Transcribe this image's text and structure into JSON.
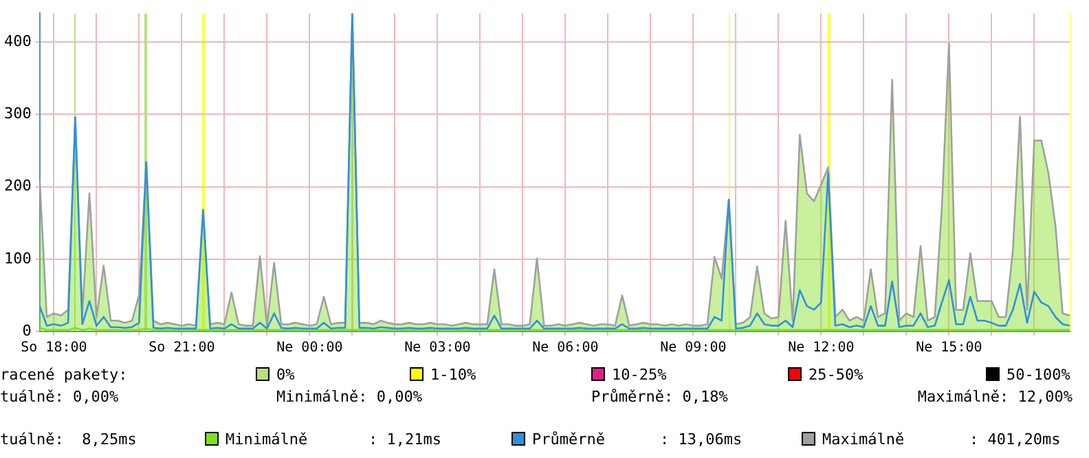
{
  "chart_data": {
    "type": "line",
    "categories": [
      null,
      null,
      "So 18:00",
      null,
      null,
      null,
      null,
      null,
      null,
      null,
      null,
      null,
      null,
      null,
      null,
      null,
      null,
      null,
      null,
      null,
      "So 21:00",
      null,
      null,
      null,
      null,
      null,
      null,
      null,
      null,
      null,
      null,
      null,
      null,
      null,
      null,
      null,
      null,
      null,
      "Ne 00:00",
      null,
      null,
      null,
      null,
      null,
      null,
      null,
      null,
      null,
      null,
      null,
      null,
      null,
      null,
      null,
      null,
      null,
      "Ne 03:00",
      null,
      null,
      null,
      null,
      null,
      null,
      null,
      null,
      null,
      null,
      null,
      null,
      null,
      null,
      null,
      null,
      null,
      "Ne 06:00",
      null,
      null,
      null,
      null,
      null,
      null,
      null,
      null,
      null,
      null,
      null,
      null,
      null,
      null,
      null,
      null,
      null,
      "Ne 09:00",
      null,
      null,
      null,
      null,
      null,
      null,
      null,
      null,
      null,
      null,
      null,
      null,
      null,
      null,
      null,
      null,
      null,
      "Ne 12:00",
      null,
      null,
      null,
      null,
      null,
      null,
      null,
      null,
      null,
      null,
      null,
      null,
      null,
      null,
      null,
      null,
      null,
      "Ne 15:00",
      null,
      null,
      null,
      null,
      null,
      null,
      null,
      null,
      null,
      null,
      null,
      null,
      null,
      null,
      null,
      null,
      null
    ],
    "series": [
      {
        "name": "Minimálně",
        "color": "#80e020",
        "values": [
          5,
          2,
          2,
          2,
          2,
          5,
          2,
          4,
          2,
          2,
          2,
          2,
          2,
          2,
          2,
          4,
          2,
          2,
          2,
          2,
          2,
          2,
          2,
          2,
          2,
          2,
          2,
          2,
          2,
          2,
          2,
          2,
          2,
          2,
          2,
          2,
          2,
          2,
          2,
          2,
          2,
          2,
          2,
          2,
          2,
          2,
          2,
          2,
          2,
          2,
          2,
          2,
          2,
          2,
          2,
          2,
          2,
          2,
          2,
          2,
          2,
          2,
          2,
          2,
          2,
          2,
          2,
          2,
          2,
          2,
          2,
          2,
          2,
          2,
          2,
          2,
          2,
          2,
          2,
          2,
          2,
          2,
          2,
          2,
          2,
          2,
          2,
          2,
          2,
          2,
          2,
          2,
          2,
          2,
          2,
          2,
          2,
          2,
          2,
          2,
          2,
          2,
          2,
          2,
          2,
          2,
          2,
          2,
          2,
          2,
          2,
          2,
          2,
          2,
          2,
          2,
          2,
          2,
          2,
          2,
          2,
          2,
          2,
          2,
          2,
          2,
          2,
          2,
          2,
          2,
          2,
          2,
          2,
          2,
          2,
          2,
          2,
          2,
          2,
          2,
          2,
          2,
          2,
          2,
          2,
          2
        ]
      },
      {
        "name": "Průměrně",
        "color": "#3090e0",
        "values": [
          35,
          8,
          10,
          8,
          12,
          296,
          10,
          42,
          8,
          20,
          6,
          6,
          5,
          6,
          12,
          234,
          5,
          4,
          5,
          4,
          4,
          4,
          4,
          168,
          4,
          5,
          4,
          10,
          4,
          4,
          4,
          12,
          4,
          25,
          5,
          4,
          5,
          4,
          4,
          4,
          12,
          4,
          5,
          5,
          439,
          5,
          5,
          4,
          6,
          5,
          4,
          4,
          5,
          4,
          4,
          5,
          4,
          4,
          4,
          4,
          5,
          4,
          4,
          4,
          22,
          4,
          4,
          4,
          4,
          4,
          15,
          4,
          4,
          4,
          4,
          4,
          5,
          4,
          4,
          4,
          4,
          4,
          10,
          4,
          4,
          5,
          4,
          4,
          4,
          4,
          4,
          4,
          4,
          4,
          4,
          20,
          15,
          182,
          4,
          5,
          8,
          25,
          10,
          8,
          8,
          15,
          6,
          57,
          35,
          30,
          40,
          219,
          8,
          10,
          6,
          8,
          6,
          35,
          8,
          8,
          69,
          6,
          8,
          8,
          25,
          6,
          8,
          40,
          71,
          10,
          10,
          48,
          15,
          15,
          12,
          8,
          8,
          30,
          66,
          12,
          55,
          40,
          35,
          20,
          10,
          8
        ]
      },
      {
        "name": "Maximálně",
        "type": "area",
        "color": "#a0a0a0",
        "values": [
          209,
          20,
          25,
          22,
          30,
          296,
          25,
          191,
          20,
          91,
          15,
          15,
          12,
          15,
          51,
          234,
          15,
          10,
          12,
          10,
          8,
          10,
          8,
          168,
          10,
          12,
          10,
          54,
          10,
          8,
          8,
          104,
          8,
          95,
          10,
          10,
          12,
          10,
          8,
          10,
          48,
          10,
          12,
          12,
          439,
          12,
          12,
          10,
          15,
          12,
          10,
          10,
          12,
          10,
          10,
          12,
          10,
          10,
          8,
          10,
          12,
          10,
          10,
          10,
          86,
          10,
          10,
          8,
          8,
          10,
          101,
          8,
          8,
          10,
          8,
          10,
          12,
          10,
          8,
          10,
          10,
          8,
          50,
          8,
          10,
          12,
          10,
          10,
          8,
          10,
          8,
          10,
          8,
          8,
          10,
          103,
          73,
          182,
          10,
          12,
          20,
          90,
          25,
          18,
          20,
          153,
          15,
          272,
          191,
          180,
          203,
          227,
          20,
          30,
          15,
          20,
          15,
          86,
          20,
          25,
          348,
          15,
          25,
          20,
          118,
          15,
          20,
          172,
          398,
          30,
          30,
          108,
          42,
          42,
          42,
          20,
          20,
          113,
          297,
          30,
          264,
          264,
          219,
          145,
          25,
          22
        ]
      }
    ],
    "ylim": [
      0,
      440
    ],
    "yticks": [
      0,
      100,
      200,
      300,
      400
    ],
    "grid": true,
    "legend": "bottom",
    "annotations": [
      "racené pakety:",
      "0%",
      "1-10%",
      "10-25%",
      "25-50%",
      "50-100%",
      "tuálně: 0,00%",
      "Minimálně: 0,00%",
      "Průměrně: 0,18%",
      "Maximálně: 12,00%",
      "tuálně:  8,25ms",
      ": 1,21ms",
      ": 13,06ms",
      ": 401,20ms"
    ]
  }
}
